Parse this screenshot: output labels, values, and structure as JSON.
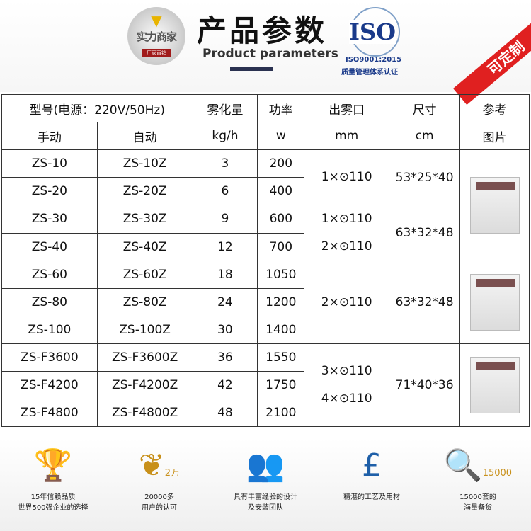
{
  "header": {
    "logo_text": "实力商家",
    "logo_sub": "厂家直销",
    "title": "产品参数",
    "subtitle": "Product parameters",
    "iso": "ISO",
    "iso_cert": "ISO9001:2015",
    "iso_desc": "质量管理体系认证",
    "ribbon": "可定制"
  },
  "table": {
    "head1": [
      "型号(电源：220V/50Hz)",
      "雾化量",
      "功率",
      "出雾口",
      "尺寸",
      "参考"
    ],
    "head2": [
      "手动",
      "自动",
      "kg/h",
      "w",
      "mm",
      "cm",
      "图片"
    ],
    "rows": [
      [
        "ZS-10",
        "ZS-10Z",
        "3",
        "200"
      ],
      [
        "ZS-20",
        "ZS-20Z",
        "6",
        "400"
      ],
      [
        "ZS-30",
        "ZS-30Z",
        "9",
        "600"
      ],
      [
        "ZS-40",
        "ZS-40Z",
        "12",
        "700"
      ],
      [
        "ZS-60",
        "ZS-60Z",
        "18",
        "1050"
      ],
      [
        "ZS-80",
        "ZS-80Z",
        "24",
        "1200"
      ],
      [
        "ZS-100",
        "ZS-100Z",
        "30",
        "1400"
      ],
      [
        "ZS-F3600",
        "ZS-F3600Z",
        "36",
        "1550"
      ],
      [
        "ZS-F4200",
        "ZS-F4200Z",
        "42",
        "1750"
      ],
      [
        "ZS-F4800",
        "ZS-F4800Z",
        "48",
        "2100"
      ]
    ],
    "groups": [
      {
        "outlet": [
          "1×⊙110"
        ],
        "size": "53*25*40"
      },
      {
        "outlet": [
          "1×⊙110",
          "2×⊙110"
        ],
        "size": "63*32*48"
      },
      {
        "outlet": [
          "2×⊙110"
        ],
        "size": "63*32*48"
      },
      {
        "outlet": [
          "3×⊙110",
          "4×⊙110"
        ],
        "size": "71*40*36"
      }
    ]
  },
  "features": [
    {
      "icon": "trophy-icon",
      "l1": "15年信赖品质",
      "l2": "世界500强企业的选择"
    },
    {
      "icon": "laurel-badge-icon",
      "badge": "2万",
      "l1": "20000多",
      "l2": "用户的认可"
    },
    {
      "icon": "team-icon",
      "l1": "具有丰富经验的设计",
      "l2": "及安装团队"
    },
    {
      "icon": "pound-award-icon",
      "l1": "精湛的工艺及用材",
      "l2": ""
    },
    {
      "icon": "magnifier-icon",
      "badge": "15000",
      "l1": "15000套的",
      "l2": "海量备货"
    }
  ]
}
